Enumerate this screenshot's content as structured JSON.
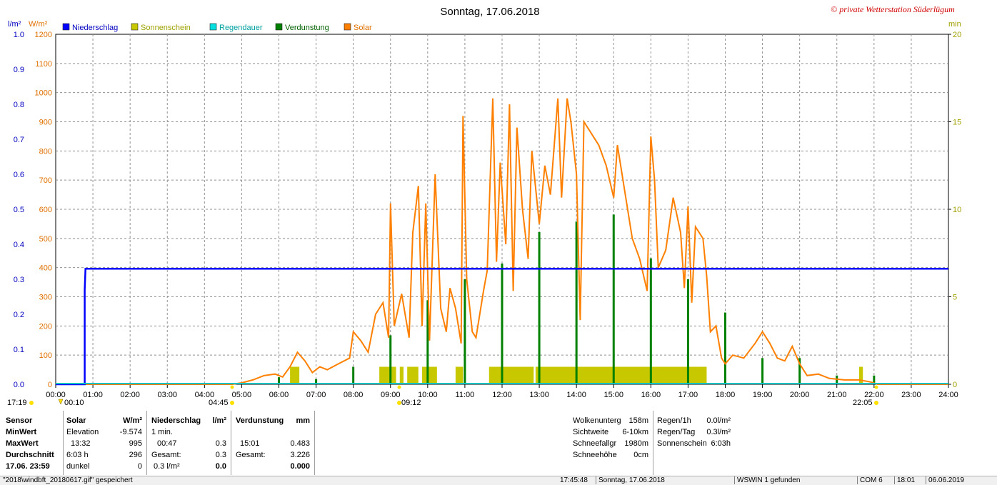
{
  "title": "Sonntag, 17.06.2018",
  "watermark": "© private Wetterstation Süderlügum",
  "legend": [
    {
      "label": "Niederschlag",
      "color": "#0000ff"
    },
    {
      "label": "Sonnenschein",
      "color": "#c8c800"
    },
    {
      "label": "Regendauer",
      "color": "#00e0e0"
    },
    {
      "label": "Verdunstung",
      "color": "#008000"
    },
    {
      "label": "Solar",
      "color": "#ff8000"
    }
  ],
  "axis_units": {
    "left1": "l/m²",
    "left2": "W/m²",
    "right": "min"
  },
  "sun_marks": {
    "sunrise_left": "17:19",
    "sunrise": "04:45",
    "min_time": "00:10",
    "noon": "09:12",
    "sunset": "22:05"
  },
  "chart_data": {
    "type": "line",
    "x_ticks": [
      "00:00",
      "01:00",
      "02:00",
      "03:00",
      "04:00",
      "05:00",
      "06:00",
      "07:00",
      "08:00",
      "09:00",
      "10:00",
      "11:00",
      "12:00",
      "13:00",
      "14:00",
      "15:00",
      "16:00",
      "17:00",
      "18:00",
      "19:00",
      "20:00",
      "21:00",
      "22:00",
      "23:00",
      "24:00"
    ],
    "xlim": [
      0,
      24
    ],
    "y_left_rain": {
      "ticks": [
        "0.0",
        "0.1",
        "0.2",
        "0.3",
        "0.4",
        "0.5",
        "0.6",
        "0.7",
        "0.8",
        "0.9",
        "1.0"
      ],
      "ylim": [
        0,
        1.0
      ]
    },
    "y_left_solar": {
      "ticks": [
        "0",
        "100",
        "200",
        "300",
        "400",
        "500",
        "600",
        "700",
        "800",
        "900",
        "1000",
        "1100",
        "1200"
      ],
      "ylim": [
        0,
        1200
      ]
    },
    "y_right_min": {
      "ticks": [
        "0",
        "5",
        "10",
        "15",
        "20"
      ],
      "ylim": [
        0,
        20
      ]
    },
    "grid": true,
    "series": [
      {
        "name": "Niederschlag",
        "unit": "l/m²",
        "color": "#0000ff",
        "points": [
          [
            0,
            0
          ],
          [
            0.78,
            0
          ],
          [
            0.78,
            0.27
          ],
          [
            0.8,
            0.33
          ],
          [
            24,
            0.33
          ]
        ]
      },
      {
        "name": "Solar",
        "unit": "W/m²",
        "color": "#ff8000",
        "points": [
          [
            0,
            0
          ],
          [
            4.75,
            0
          ],
          [
            5.0,
            5
          ],
          [
            5.3,
            15
          ],
          [
            5.6,
            30
          ],
          [
            5.9,
            35
          ],
          [
            6.1,
            25
          ],
          [
            6.3,
            60
          ],
          [
            6.5,
            110
          ],
          [
            6.7,
            80
          ],
          [
            6.9,
            40
          ],
          [
            7.1,
            60
          ],
          [
            7.3,
            50
          ],
          [
            7.6,
            70
          ],
          [
            7.9,
            90
          ],
          [
            8.0,
            180
          ],
          [
            8.2,
            150
          ],
          [
            8.4,
            110
          ],
          [
            8.6,
            240
          ],
          [
            8.8,
            280
          ],
          [
            8.95,
            160
          ],
          [
            9.0,
            620
          ],
          [
            9.1,
            200
          ],
          [
            9.3,
            310
          ],
          [
            9.5,
            160
          ],
          [
            9.6,
            520
          ],
          [
            9.75,
            680
          ],
          [
            9.85,
            200
          ],
          [
            9.95,
            620
          ],
          [
            10.05,
            150
          ],
          [
            10.2,
            720
          ],
          [
            10.35,
            260
          ],
          [
            10.5,
            180
          ],
          [
            10.6,
            330
          ],
          [
            10.75,
            260
          ],
          [
            10.9,
            140
          ],
          [
            10.95,
            920
          ],
          [
            11.05,
            360
          ],
          [
            11.2,
            180
          ],
          [
            11.3,
            160
          ],
          [
            11.5,
            320
          ],
          [
            11.6,
            390
          ],
          [
            11.75,
            980
          ],
          [
            11.85,
            420
          ],
          [
            11.95,
            760
          ],
          [
            12.1,
            480
          ],
          [
            12.2,
            960
          ],
          [
            12.3,
            320
          ],
          [
            12.4,
            880
          ],
          [
            12.55,
            600
          ],
          [
            12.7,
            430
          ],
          [
            12.8,
            800
          ],
          [
            13.0,
            550
          ],
          [
            13.15,
            750
          ],
          [
            13.3,
            650
          ],
          [
            13.5,
            980
          ],
          [
            13.6,
            640
          ],
          [
            13.75,
            980
          ],
          [
            13.85,
            900
          ],
          [
            14.0,
            720
          ],
          [
            14.1,
            220
          ],
          [
            14.2,
            900
          ],
          [
            14.4,
            860
          ],
          [
            14.6,
            820
          ],
          [
            14.8,
            750
          ],
          [
            15.0,
            640
          ],
          [
            15.1,
            820
          ],
          [
            15.3,
            660
          ],
          [
            15.5,
            500
          ],
          [
            15.7,
            430
          ],
          [
            15.9,
            320
          ],
          [
            16.0,
            850
          ],
          [
            16.1,
            700
          ],
          [
            16.2,
            400
          ],
          [
            16.4,
            460
          ],
          [
            16.6,
            640
          ],
          [
            16.8,
            520
          ],
          [
            16.9,
            330
          ],
          [
            17.0,
            610
          ],
          [
            17.1,
            280
          ],
          [
            17.2,
            540
          ],
          [
            17.4,
            500
          ],
          [
            17.5,
            370
          ],
          [
            17.6,
            180
          ],
          [
            17.75,
            200
          ],
          [
            17.9,
            90
          ],
          [
            18.0,
            70
          ],
          [
            18.2,
            100
          ],
          [
            18.5,
            90
          ],
          [
            18.8,
            140
          ],
          [
            19.0,
            180
          ],
          [
            19.2,
            140
          ],
          [
            19.4,
            90
          ],
          [
            19.6,
            80
          ],
          [
            19.8,
            130
          ],
          [
            20.0,
            70
          ],
          [
            20.2,
            30
          ],
          [
            20.5,
            35
          ],
          [
            20.8,
            20
          ],
          [
            21.2,
            15
          ],
          [
            21.6,
            15
          ],
          [
            21.9,
            8
          ],
          [
            22.1,
            0
          ],
          [
            24,
            0
          ]
        ]
      },
      {
        "name": "Sonnenschein",
        "unit": "min",
        "color": "#c8c800",
        "bars": [
          [
            6.3,
            6.55
          ],
          [
            8.7,
            9.15
          ],
          [
            9.25,
            9.35
          ],
          [
            9.45,
            9.75
          ],
          [
            9.85,
            10.25
          ],
          [
            10.75,
            10.95
          ],
          [
            11.65,
            12.85
          ],
          [
            12.9,
            17.5
          ],
          [
            21.6,
            21.7
          ]
        ]
      },
      {
        "name": "Verdunstung",
        "unit": "min",
        "color": "#008000",
        "spikes": [
          [
            6.0,
            0.4
          ],
          [
            7.0,
            0.3
          ],
          [
            8.0,
            1.0
          ],
          [
            9.0,
            2.8
          ],
          [
            10.0,
            4.8
          ],
          [
            11.0,
            6.0
          ],
          [
            12.0,
            6.9
          ],
          [
            13.0,
            8.7
          ],
          [
            14.0,
            9.3
          ],
          [
            15.0,
            9.7
          ],
          [
            16.0,
            7.2
          ],
          [
            17.0,
            6.0
          ],
          [
            18.0,
            4.1
          ],
          [
            19.0,
            1.5
          ],
          [
            20.0,
            1.5
          ],
          [
            21.0,
            0.5
          ],
          [
            22.0,
            0.5
          ]
        ]
      }
    ]
  },
  "stats": {
    "col_sensor": [
      "Sensor",
      "MinWert",
      "MaxWert",
      "Durchschnitt",
      "17.06. 23:59"
    ],
    "solar_head": "Solar",
    "solar_unit": "W/m²",
    "solar_rows": [
      [
        "Elevation",
        "-9.574"
      ],
      [
        "13:32",
        "995"
      ],
      [
        "6:03 h",
        "296"
      ],
      [
        "dunkel",
        "0"
      ]
    ],
    "rain_head": "Niederschlag",
    "rain_unit": "l/m²",
    "rain_rows": [
      [
        "1 min.",
        ""
      ],
      [
        "00:47",
        "0.3"
      ],
      [
        "Gesamt:",
        "0.3"
      ],
      [
        "0.3 l/m²",
        "0.0"
      ]
    ],
    "evap_head": "Verdunstung",
    "evap_unit": "mm",
    "evap_rows": [
      [
        "",
        ""
      ],
      [
        "15:01",
        "0.483"
      ],
      [
        "Gesamt:",
        "3.226"
      ],
      [
        "",
        "0.000"
      ]
    ],
    "weather_rows": [
      [
        "Wolkenunterg",
        "158m"
      ],
      [
        "Sichtweite",
        "6-10km"
      ],
      [
        "Schneefallgr",
        "1980m"
      ],
      [
        "Schneehöhe",
        "0cm"
      ]
    ],
    "rain_info_rows": [
      [
        "Regen/1h",
        "0.0l/m²"
      ],
      [
        "Regen/Tag",
        "0.3l/m²"
      ],
      [
        "Sonnenschein",
        "6:03h"
      ]
    ]
  },
  "statusbar": {
    "file": "\"2018\\windbft_20180617.gif\" gespeichert",
    "time1": "17:45:48",
    "date": "Sonntag, 17.06.2018",
    "device": "WSWIN 1 gefunden",
    "port": "COM 6",
    "time2": "18:01",
    "date2": "06.06.2019"
  }
}
